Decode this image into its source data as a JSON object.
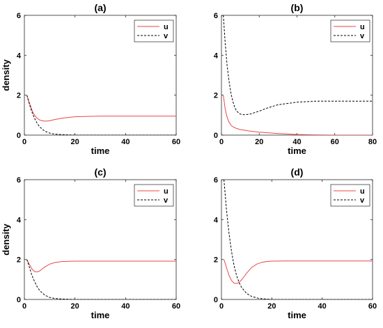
{
  "chart_data": [
    {
      "type": "line",
      "title": "(a)",
      "xlabel": "time",
      "ylabel": "density",
      "xlim": [
        0,
        60
      ],
      "ylim": [
        0,
        6
      ],
      "xticks": [
        0,
        20,
        40,
        60
      ],
      "yticks": [
        0,
        2,
        4,
        6
      ],
      "legend": "top-right",
      "series": [
        {
          "name": "u",
          "color": "#e8474b",
          "style": "solid",
          "x": [
            1,
            2,
            3,
            4,
            5,
            6,
            7,
            8,
            9,
            10,
            12,
            15,
            20,
            25,
            30,
            40,
            50,
            60
          ],
          "y": [
            2.0,
            1.6,
            1.25,
            1.0,
            0.85,
            0.76,
            0.72,
            0.7,
            0.7,
            0.72,
            0.78,
            0.85,
            0.92,
            0.94,
            0.95,
            0.95,
            0.95,
            0.95
          ]
        },
        {
          "name": "v",
          "color": "#000000",
          "style": "dashed",
          "x": [
            1,
            2,
            3,
            4,
            5,
            6,
            8,
            10,
            12,
            15,
            20,
            30,
            40,
            50,
            60
          ],
          "y": [
            2.0,
            1.55,
            1.15,
            0.85,
            0.6,
            0.42,
            0.2,
            0.1,
            0.05,
            0.02,
            0.0,
            0.0,
            0.0,
            0.0,
            0.0
          ]
        }
      ]
    },
    {
      "type": "line",
      "title": "(b)",
      "xlabel": "time",
      "ylabel": "",
      "xlim": [
        0,
        80
      ],
      "ylim": [
        0,
        6
      ],
      "xticks": [
        0,
        20,
        40,
        60,
        80
      ],
      "yticks": [
        0,
        2,
        4,
        6
      ],
      "legend": "top-right",
      "series": [
        {
          "name": "u",
          "color": "#e8474b",
          "style": "solid",
          "x": [
            1,
            2,
            3,
            4,
            5,
            6,
            8,
            10,
            15,
            20,
            30,
            40,
            50,
            60,
            70,
            80
          ],
          "y": [
            2.0,
            1.3,
            0.9,
            0.65,
            0.5,
            0.42,
            0.33,
            0.28,
            0.2,
            0.15,
            0.08,
            0.03,
            0.01,
            0.0,
            0.0,
            0.0
          ]
        },
        {
          "name": "v",
          "color": "#000000",
          "style": "dashed",
          "x": [
            1,
            2,
            3,
            4,
            5,
            6,
            7,
            8,
            10,
            12,
            15,
            20,
            25,
            30,
            40,
            50,
            60,
            70,
            80
          ],
          "y": [
            6.0,
            4.6,
            3.5,
            2.7,
            2.1,
            1.7,
            1.4,
            1.2,
            1.05,
            1.02,
            1.05,
            1.2,
            1.38,
            1.52,
            1.65,
            1.7,
            1.7,
            1.7,
            1.7
          ]
        }
      ]
    },
    {
      "type": "line",
      "title": "(c)",
      "xlabel": "time",
      "ylabel": "density",
      "xlim": [
        0,
        60
      ],
      "ylim": [
        0,
        6
      ],
      "xticks": [
        0,
        20,
        40,
        60
      ],
      "yticks": [
        0,
        2,
        4,
        6
      ],
      "legend": "top-right",
      "series": [
        {
          "name": "u",
          "color": "#e8474b",
          "style": "solid",
          "x": [
            1,
            2,
            3,
            4,
            5,
            6,
            7,
            8,
            10,
            12,
            15,
            20,
            25,
            30,
            40,
            50,
            60
          ],
          "y": [
            2.0,
            1.75,
            1.52,
            1.4,
            1.38,
            1.42,
            1.52,
            1.62,
            1.77,
            1.85,
            1.9,
            1.92,
            1.92,
            1.92,
            1.92,
            1.92,
            1.92
          ]
        },
        {
          "name": "v",
          "color": "#000000",
          "style": "dashed",
          "x": [
            1,
            2,
            3,
            4,
            5,
            6,
            8,
            10,
            12,
            15,
            20,
            30,
            40,
            50,
            60
          ],
          "y": [
            2.0,
            1.6,
            1.2,
            0.9,
            0.65,
            0.45,
            0.22,
            0.1,
            0.05,
            0.02,
            0.0,
            0.0,
            0.0,
            0.0,
            0.0
          ]
        }
      ]
    },
    {
      "type": "line",
      "title": "(d)",
      "xlabel": "time",
      "ylabel": "",
      "xlim": [
        0,
        60
      ],
      "ylim": [
        0,
        6
      ],
      "xticks": [
        0,
        20,
        40,
        60
      ],
      "yticks": [
        0,
        2,
        4,
        6
      ],
      "legend": "top-right",
      "series": [
        {
          "name": "u",
          "color": "#e8474b",
          "style": "solid",
          "x": [
            1,
            2,
            3,
            4,
            5,
            6,
            7,
            8,
            9,
            10,
            12,
            14,
            16,
            18,
            20,
            25,
            30,
            40,
            50,
            60
          ],
          "y": [
            2.0,
            1.6,
            1.2,
            0.95,
            0.82,
            0.8,
            0.85,
            0.98,
            1.15,
            1.32,
            1.6,
            1.77,
            1.86,
            1.9,
            1.92,
            1.93,
            1.93,
            1.93,
            1.93,
            1.93
          ]
        },
        {
          "name": "v",
          "color": "#000000",
          "style": "dashed",
          "x": [
            1,
            2,
            3,
            4,
            5,
            6,
            7,
            8,
            10,
            12,
            15,
            20,
            30,
            40,
            50,
            60
          ],
          "y": [
            6.0,
            4.5,
            3.3,
            2.4,
            1.7,
            1.2,
            0.85,
            0.6,
            0.3,
            0.15,
            0.05,
            0.0,
            0.0,
            0.0,
            0.0,
            0.0
          ]
        }
      ]
    }
  ]
}
